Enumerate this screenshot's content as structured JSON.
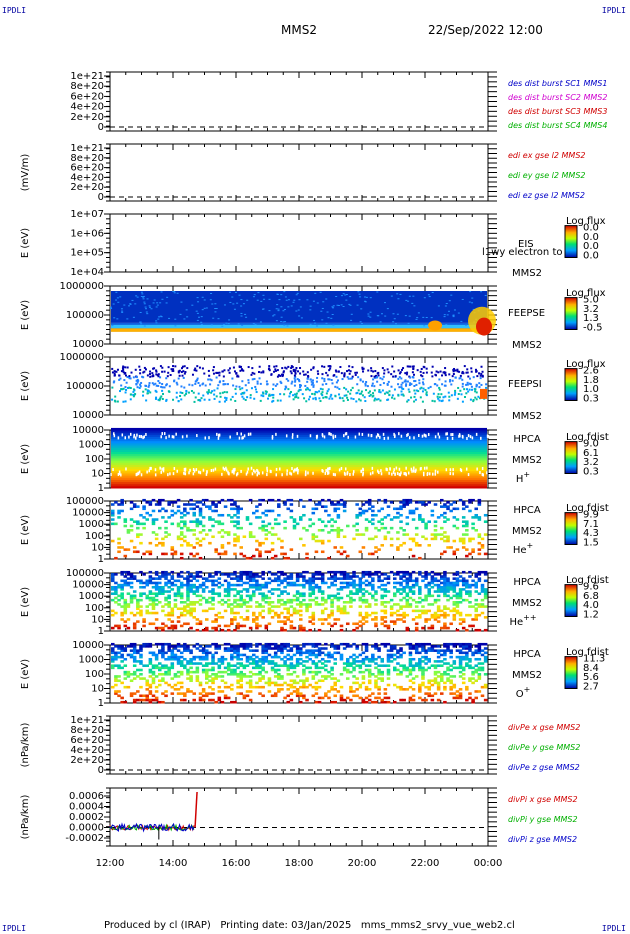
{
  "corner_labels": {
    "tl": "IPDLI",
    "tr": "IPDLI",
    "bl": "IPDLI",
    "br": "IPDLI"
  },
  "header": {
    "spacecraft": "MMS2",
    "datetime": "22/Sep/2022 12:00"
  },
  "footer": {
    "text": "Produced by cl (IRAP)   Printing date: 03/Jan/2025   mms_mms2_srvy_vue_web2.cl"
  },
  "x_axis": {
    "ticks": [
      "12:00",
      "14:00",
      "16:00",
      "18:00",
      "20:00",
      "22:00",
      "00:00"
    ]
  },
  "panels": [
    {
      "id": "dist",
      "kind": "line",
      "ylabel": "",
      "yticks": [
        "1e+21",
        "8e+20",
        "6e+20",
        "4e+20",
        "2e+20",
        "0"
      ],
      "zero_dashed": true,
      "legend": [
        {
          "text": "des dist burst SC1 MMS1",
          "color": "#0000c8"
        },
        {
          "text": "des dist burst SC2 MMS2",
          "color": "#d000d0"
        },
        {
          "text": "des dist burst SC3 MMS3",
          "color": "#d00000"
        },
        {
          "text": "des dist burst SC4 MMS4",
          "color": "#00b000"
        }
      ]
    },
    {
      "id": "edi",
      "kind": "line",
      "ylabel": "(mV/m)",
      "yticks": [
        "1e+21",
        "8e+20",
        "6e+20",
        "4e+20",
        "2e+20",
        "0"
      ],
      "zero_dashed": true,
      "legend": [
        {
          "text": "edi ex gse l2 MMS2",
          "color": "#d00000"
        },
        {
          "text": "edi ey gse l2 MMS2",
          "color": "#00b000"
        },
        {
          "text": "edi ez gse l2 MMS2",
          "color": "#0000c8"
        }
      ]
    },
    {
      "id": "eis",
      "kind": "spec",
      "ylabel": "E (eV)",
      "yticks": [
        "1e+07",
        "1e+06",
        "1e+05",
        "1e+04"
      ],
      "instr": [
        "EIS",
        "MMS2"
      ],
      "overlay": "l1wy electron to",
      "cbar_title": "Log flux",
      "cbar_ticks": [
        "0.0",
        "0.0",
        "0.0",
        "0.0"
      ]
    },
    {
      "id": "feepse",
      "kind": "spec",
      "ylabel": "E (eV)",
      "yticks": [
        "1000000",
        "100000",
        "10000"
      ],
      "instr": [
        "FEEPSE",
        "MMS2"
      ],
      "cbar_title": "Log flux",
      "cbar_ticks": [
        "5.0",
        "3.2",
        "1.3",
        "-0.5"
      ]
    },
    {
      "id": "feepsi",
      "kind": "spec",
      "ylabel": "E (eV)",
      "yticks": [
        "1000000",
        "100000",
        "10000"
      ],
      "instr": [
        "FEEPSI",
        "MMS2"
      ],
      "cbar_title": "Log flux",
      "cbar_ticks": [
        "2.6",
        "1.8",
        "1.0",
        "0.3"
      ]
    },
    {
      "id": "hpca_h",
      "kind": "spec",
      "ylabel": "E (eV)",
      "yticks": [
        "10000",
        "1000",
        "100",
        "10",
        "1"
      ],
      "instr": [
        "HPCA",
        "MMS2"
      ],
      "species": "H",
      "species_sup": "+",
      "cbar_title": "Log fdist",
      "cbar_ticks": [
        "9.0",
        "6.1",
        "3.2",
        "0.3"
      ]
    },
    {
      "id": "hpca_he",
      "kind": "spec",
      "ylabel": "E (eV)",
      "yticks": [
        "100000",
        "10000",
        "1000",
        "100",
        "10",
        "1"
      ],
      "instr": [
        "HPCA",
        "MMS2"
      ],
      "species": "He",
      "species_sup": "+",
      "cbar_title": "Log fdist",
      "cbar_ticks": [
        "9.9",
        "7.1",
        "4.3",
        "1.5"
      ]
    },
    {
      "id": "hpca_hepp",
      "kind": "spec",
      "ylabel": "E (eV)",
      "yticks": [
        "100000",
        "10000",
        "1000",
        "100",
        "10",
        "1"
      ],
      "instr": [
        "HPCA",
        "MMS2"
      ],
      "species": "He",
      "species_sup": "++",
      "cbar_title": "Log fdist",
      "cbar_ticks": [
        "9.6",
        "6.8",
        "4.0",
        "1.2"
      ]
    },
    {
      "id": "hpca_o",
      "kind": "spec",
      "ylabel": "E (eV)",
      "yticks": [
        "10000",
        "1000",
        "100",
        "10",
        "1"
      ],
      "instr": [
        "HPCA",
        "MMS2"
      ],
      "species": "O",
      "species_sup": "+",
      "cbar_title": "Log fdist",
      "cbar_ticks": [
        "11.3",
        "8.4",
        "5.6",
        "2.7"
      ]
    },
    {
      "id": "divpe",
      "kind": "line",
      "ylabel": "(nPa/km)",
      "yticks": [
        "1e+21",
        "8e+20",
        "6e+20",
        "4e+20",
        "2e+20",
        "0"
      ],
      "zero_dashed": true,
      "legend": [
        {
          "text": "divPe x gse MMS2",
          "color": "#d00000"
        },
        {
          "text": "divPe y gse MMS2",
          "color": "#00b000"
        },
        {
          "text": "divPe z gse MMS2",
          "color": "#0000c8"
        }
      ]
    },
    {
      "id": "divpi",
      "kind": "line",
      "ylabel": "(nPa/km)",
      "yticks": [
        "0.0006",
        "0.0004",
        "0.0002",
        "0.0000",
        "-0.0002"
      ],
      "zero_dashed": true,
      "legend": [
        {
          "text": "divPi x gse MMS2",
          "color": "#d00000"
        },
        {
          "text": "divPi y gse MMS2",
          "color": "#00b000"
        },
        {
          "text": "divPi z gse MMS2",
          "color": "#0000c8"
        }
      ]
    }
  ],
  "chart_data": {
    "type": "heatmap",
    "x": {
      "range": [
        "12:00",
        "00:00"
      ],
      "ticks": [
        "12:00",
        "14:00",
        "16:00",
        "18:00",
        "20:00",
        "22:00",
        "00:00"
      ]
    },
    "divpi_series": [
      {
        "name": "divPi x gse MMS2",
        "color": "#d00000",
        "points": [
          [
            "12:00",
            0.0
          ],
          [
            "13:30",
            0.0
          ],
          [
            "14:30",
            0.0
          ],
          [
            "14:40",
            0.0006
          ]
        ]
      },
      {
        "name": "divPi y gse MMS2",
        "color": "#00b000",
        "points": [
          [
            "12:00",
            0.0
          ],
          [
            "14:40",
            0.0
          ]
        ]
      },
      {
        "name": "divPi z gse MMS2",
        "color": "#0000c8",
        "points": [
          [
            "12:00",
            0.0
          ],
          [
            "14:40",
            0.0
          ]
        ]
      }
    ]
  }
}
